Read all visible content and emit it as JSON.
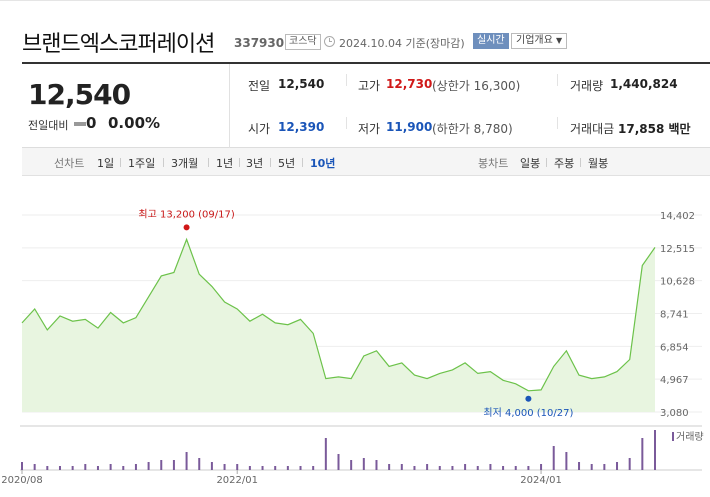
{
  "header": {
    "company_name": "브랜드엑스코퍼레이션",
    "ticker": "337930",
    "market": "코스닥",
    "asof": "2024.10.04 기준(장마감)",
    "realtime_label": "실시간",
    "company_info_label": "기업개요"
  },
  "summary": {
    "price": "12,540",
    "prevday_label": "전일대비",
    "change": "0",
    "change_rate": "0.00%",
    "prev_close_label": "전일",
    "prev_close": "12,540",
    "high_label": "고가",
    "high": "12,730",
    "upper_limit": "(상한가 16,300)",
    "volume_label": "거래량",
    "volume": "1,440,824",
    "open_label": "시가",
    "open": "12,390",
    "low_label": "저가",
    "low": "11,900",
    "lower_limit": "(하한가 8,780)",
    "amount_label": "거래대금",
    "amount": "17,858 백만"
  },
  "toolbar": {
    "line_chart_label": "선차트",
    "periods": [
      "1일",
      "1주일",
      "3개월",
      "1년",
      "3년",
      "5년",
      "10년"
    ],
    "active_period": "10년",
    "candle_label": "봉차트",
    "candles": [
      "일봉",
      "주봉",
      "월봉"
    ]
  },
  "colors": {
    "line": "#6cc24a",
    "fill": "#e8f5e0",
    "up": "#d01818",
    "down": "#1a55b8",
    "volume": "#7a5a9a"
  },
  "chart_data": {
    "type": "area",
    "ylim": [
      3080,
      14402
    ],
    "y_ticks": [
      "14,402",
      "12,515",
      "10,628",
      "8,741",
      "6,854",
      "4,967",
      "3,080"
    ],
    "x_ticks": [
      "2020/08",
      "2022/01",
      "2024/01"
    ],
    "high_annotation": "최고 13,200 (09/17)",
    "low_annotation": "최저 4,000 (10/27)",
    "volume_label": "거래량",
    "x": [
      "2020/08",
      "2020/09",
      "2020/10",
      "2020/11",
      "2020/12",
      "2021/01",
      "2021/02",
      "2021/03",
      "2021/04",
      "2021/05",
      "2021/06",
      "2021/07",
      "2021/08",
      "2021/09",
      "2021/10",
      "2021/11",
      "2021/12",
      "2022/01",
      "2022/02",
      "2022/03",
      "2022/04",
      "2022/05",
      "2022/06",
      "2022/07",
      "2022/08",
      "2022/09",
      "2022/10",
      "2022/11",
      "2022/12",
      "2023/01",
      "2023/02",
      "2023/03",
      "2023/04",
      "2023/05",
      "2023/06",
      "2023/07",
      "2023/08",
      "2023/09",
      "2023/10",
      "2023/11",
      "2023/12",
      "2024/01",
      "2024/02",
      "2024/03",
      "2024/04",
      "2024/05",
      "2024/06",
      "2024/07",
      "2024/08",
      "2024/09",
      "2024/10"
    ],
    "values": [
      8200,
      9000,
      7800,
      8600,
      8300,
      8400,
      7900,
      8800,
      8200,
      8500,
      9700,
      10900,
      11100,
      13000,
      11000,
      10300,
      9400,
      9000,
      8300,
      8700,
      8200,
      8100,
      8400,
      7600,
      5000,
      5100,
      5000,
      6300,
      6600,
      5700,
      5900,
      5200,
      5000,
      5300,
      5500,
      5900,
      5300,
      5400,
      4900,
      4700,
      4300,
      4350,
      5700,
      6600,
      5200,
      5000,
      5100,
      5400,
      6100,
      11500,
      12540
    ],
    "volume": [
      4,
      3,
      2,
      2,
      2,
      3,
      2,
      3,
      2,
      3,
      4,
      5,
      5,
      9,
      6,
      4,
      3,
      3,
      2,
      2,
      2,
      2,
      2,
      2,
      16,
      8,
      5,
      6,
      5,
      3,
      3,
      2,
      3,
      2,
      2,
      3,
      2,
      3,
      2,
      2,
      2,
      3,
      12,
      9,
      4,
      3,
      3,
      4,
      6,
      16,
      20
    ]
  }
}
